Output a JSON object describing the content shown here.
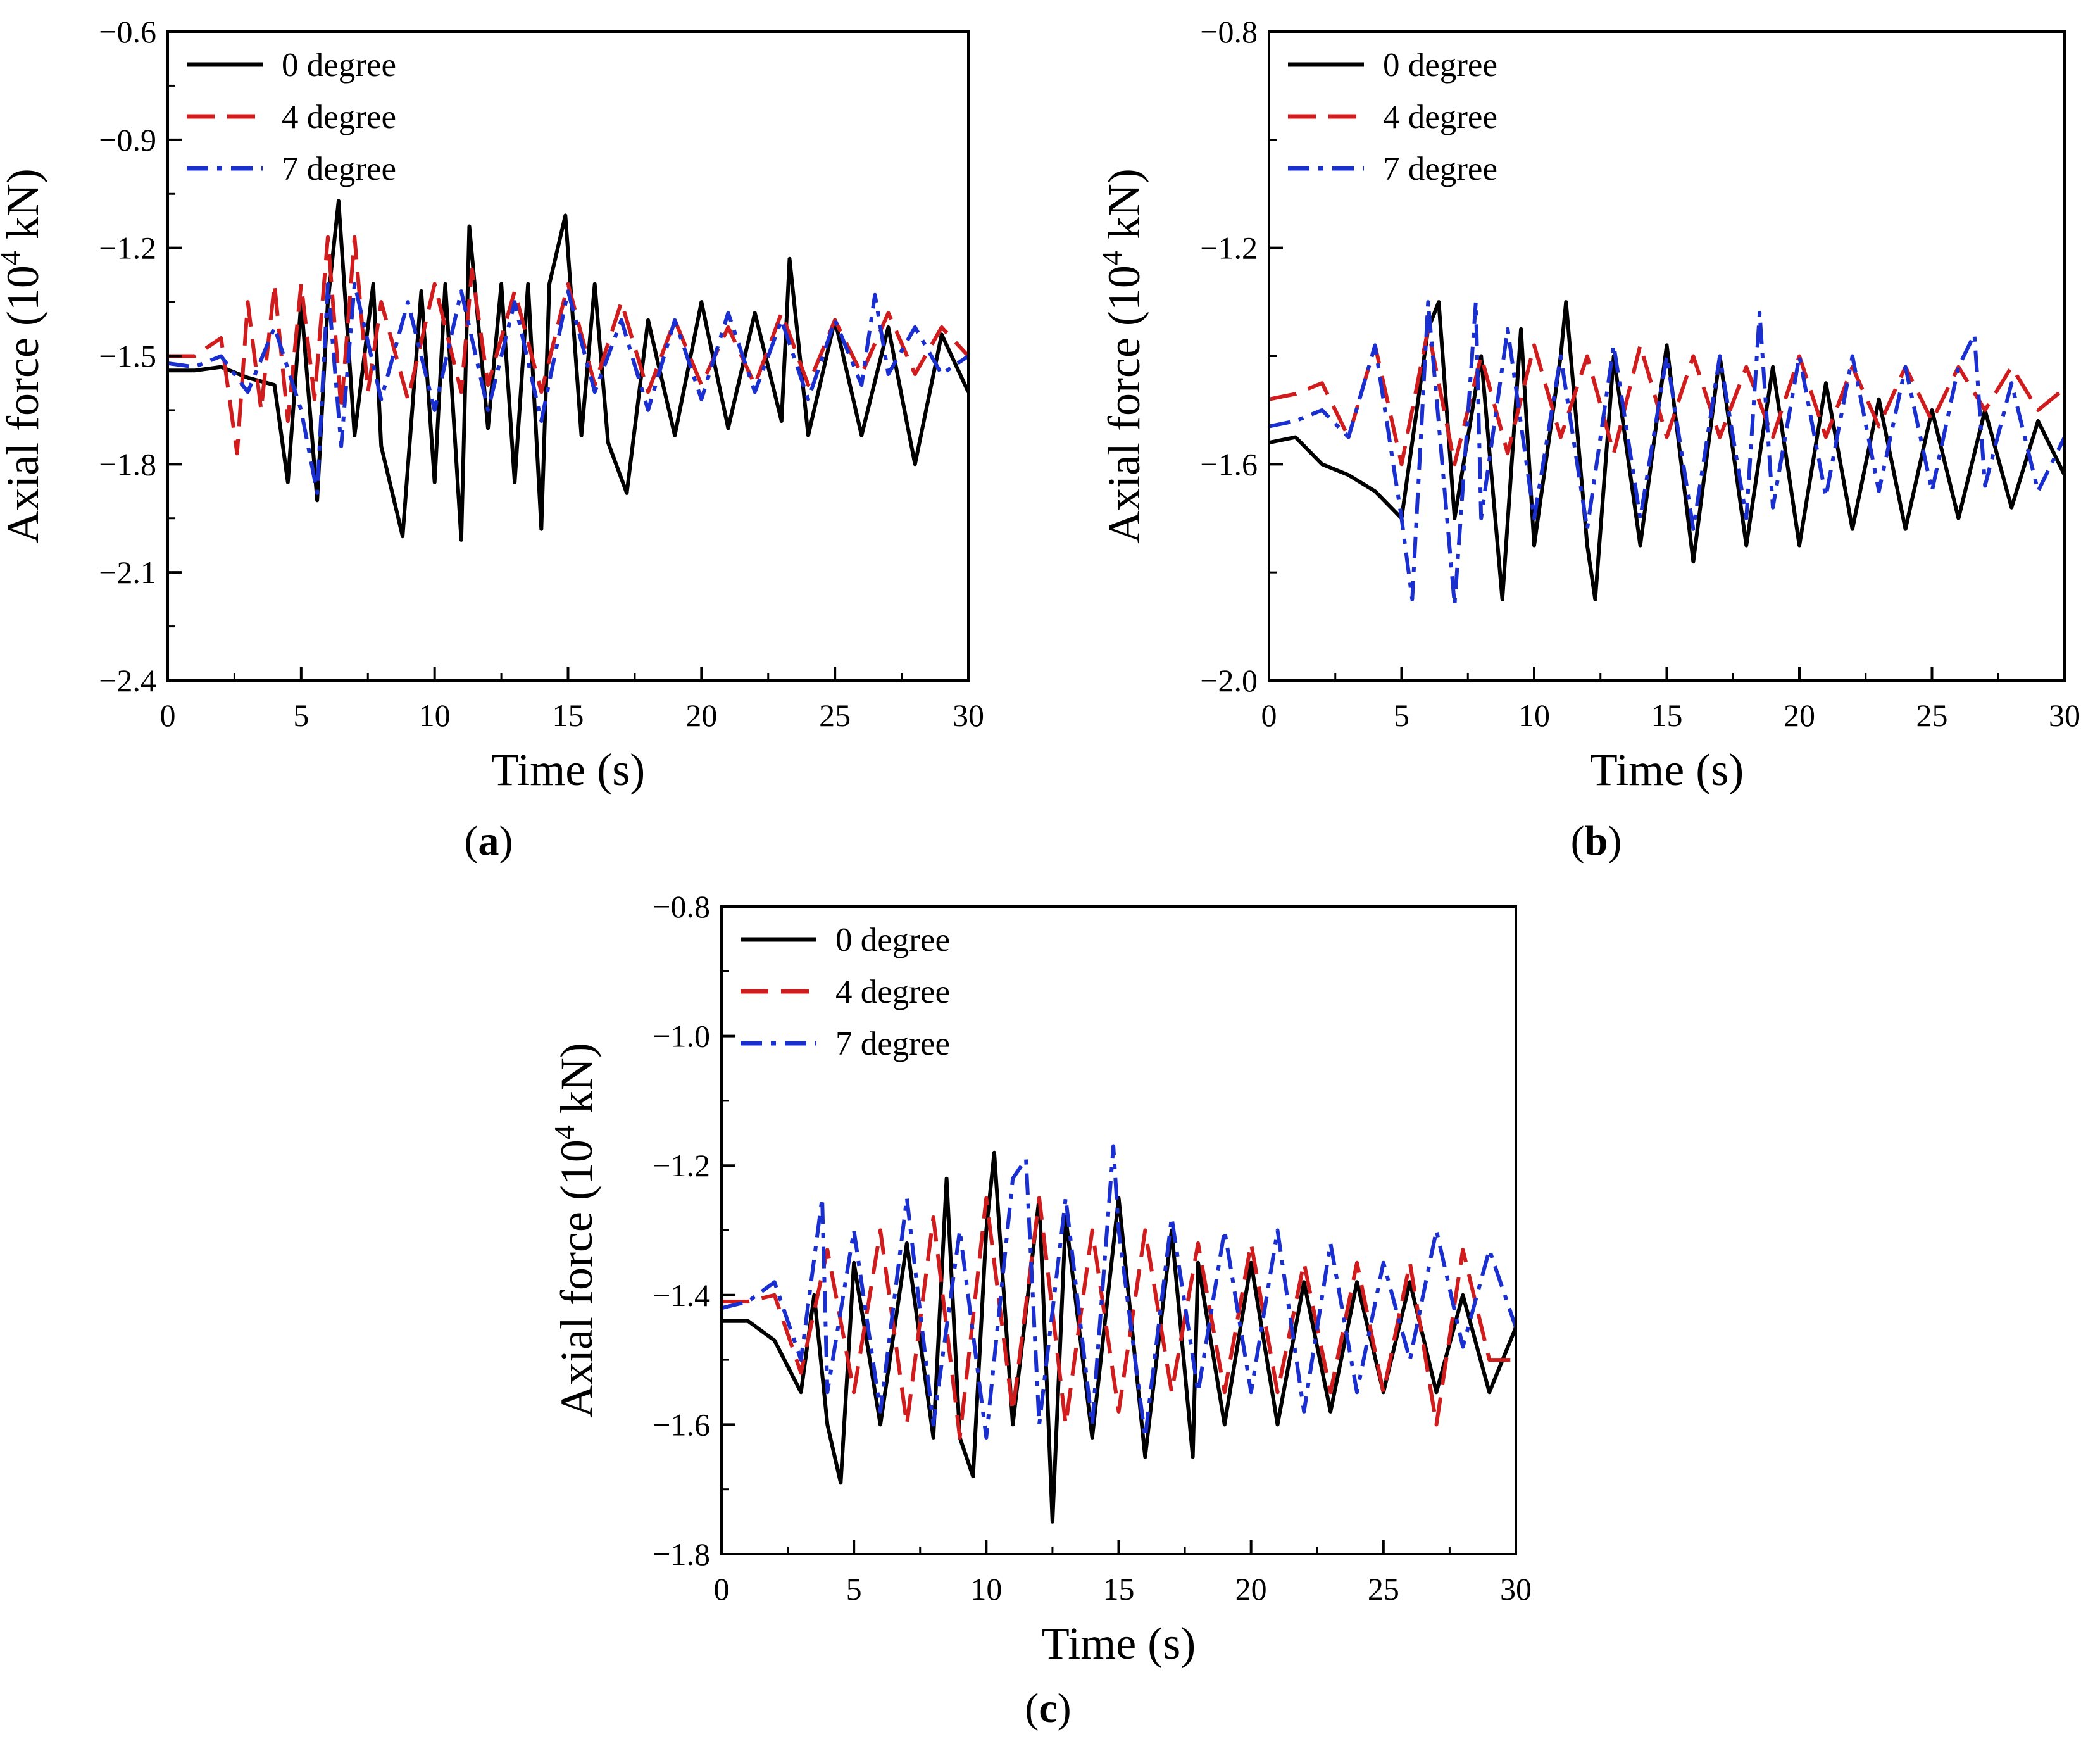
{
  "figure": {
    "series_styles": [
      {
        "name": "0 degree",
        "color": "#000000",
        "dash": "none"
      },
      {
        "name": "4 degree",
        "color": "#d01c1c",
        "dash": "long-dash"
      },
      {
        "name": "7 degree",
        "color": "#1a2fd0",
        "dash": "dash-dot"
      }
    ]
  },
  "chart_data": [
    {
      "type": "line",
      "panel_label": {
        "open": "(",
        "letter": "a",
        "close": ")"
      },
      "xlabel": "Time (s)",
      "ylabel": {
        "prefix": "Axial force (10",
        "sup": "4",
        "suffix": " kN)"
      },
      "xlim": [
        0,
        30
      ],
      "ylim": [
        -2.4,
        -0.6
      ],
      "xticks": [
        0,
        5,
        10,
        15,
        20,
        25,
        30
      ],
      "xtick_labels": [
        "0",
        "5",
        "10",
        "15",
        "20",
        "25",
        "30"
      ],
      "yticks": [
        -2.4,
        -2.1,
        -1.8,
        -1.5,
        -1.2,
        -0.9,
        -0.6
      ],
      "ytick_labels": [
        "−2.4",
        "−2.1",
        "−1.8",
        "−1.5",
        "−1.2",
        "−0.9",
        "−0.6"
      ],
      "legend": [
        "0 degree",
        "4 degree",
        "7 degree"
      ],
      "series": [
        {
          "name": "0 degree",
          "x": [
            0,
            1,
            2,
            3,
            4,
            4.5,
            5,
            5.6,
            6,
            6.4,
            7,
            7.7,
            8,
            8.8,
            9.5,
            10,
            10.4,
            11,
            11.3,
            12,
            12.5,
            13,
            13.5,
            14,
            14.3,
            14.9,
            15.5,
            16,
            16.5,
            17.2,
            18,
            19,
            20,
            21,
            22,
            23,
            23.3,
            24,
            25,
            26,
            27,
            28,
            29,
            30
          ],
          "values": [
            -1.54,
            -1.54,
            -1.53,
            -1.56,
            -1.58,
            -1.85,
            -1.35,
            -1.9,
            -1.35,
            -1.07,
            -1.72,
            -1.3,
            -1.75,
            -2.0,
            -1.32,
            -1.85,
            -1.3,
            -2.01,
            -1.14,
            -1.7,
            -1.3,
            -1.85,
            -1.3,
            -1.98,
            -1.3,
            -1.11,
            -1.72,
            -1.3,
            -1.74,
            -1.88,
            -1.4,
            -1.72,
            -1.35,
            -1.7,
            -1.38,
            -1.68,
            -1.23,
            -1.72,
            -1.4,
            -1.72,
            -1.42,
            -1.8,
            -1.44,
            -1.6
          ]
        },
        {
          "name": "4 degree",
          "x": [
            0,
            1,
            2,
            2.6,
            3,
            3.5,
            4,
            4.5,
            5,
            5.5,
            6,
            6.5,
            7,
            7.5,
            8,
            9,
            10,
            11,
            11.4,
            12,
            13,
            14,
            15,
            16,
            17,
            18,
            19,
            20,
            21,
            22,
            23,
            24,
            25,
            26,
            27,
            28,
            29,
            30
          ],
          "values": [
            -1.5,
            -1.5,
            -1.45,
            -1.77,
            -1.35,
            -1.65,
            -1.3,
            -1.68,
            -1.3,
            -1.62,
            -1.17,
            -1.65,
            -1.17,
            -1.6,
            -1.35,
            -1.62,
            -1.3,
            -1.6,
            -1.26,
            -1.58,
            -1.32,
            -1.6,
            -1.3,
            -1.58,
            -1.35,
            -1.6,
            -1.4,
            -1.58,
            -1.42,
            -1.58,
            -1.38,
            -1.58,
            -1.4,
            -1.55,
            -1.38,
            -1.55,
            -1.42,
            -1.5
          ]
        },
        {
          "name": "7 degree",
          "x": [
            0,
            1,
            2,
            3,
            4,
            5,
            5.6,
            6,
            6.5,
            7,
            8,
            9,
            10,
            11,
            12,
            13,
            14,
            15,
            16,
            17,
            18,
            19,
            20,
            21,
            22,
            23,
            24,
            25,
            26,
            26.5,
            27,
            28,
            29,
            30
          ],
          "values": [
            -1.52,
            -1.53,
            -1.5,
            -1.6,
            -1.42,
            -1.65,
            -1.88,
            -1.3,
            -1.75,
            -1.3,
            -1.62,
            -1.35,
            -1.65,
            -1.32,
            -1.65,
            -1.35,
            -1.68,
            -1.32,
            -1.6,
            -1.4,
            -1.65,
            -1.4,
            -1.62,
            -1.38,
            -1.6,
            -1.4,
            -1.62,
            -1.4,
            -1.58,
            -1.33,
            -1.55,
            -1.42,
            -1.55,
            -1.5
          ]
        }
      ]
    },
    {
      "type": "line",
      "panel_label": {
        "open": "(",
        "letter": "b",
        "close": ")"
      },
      "xlabel": "Time (s)",
      "ylabel": {
        "prefix": "Axial force (10",
        "sup": "4",
        "suffix": " kN)"
      },
      "xlim": [
        0,
        30
      ],
      "ylim": [
        -2.0,
        -0.8
      ],
      "xticks": [
        0,
        5,
        10,
        15,
        20,
        25,
        30
      ],
      "xtick_labels": [
        "0",
        "5",
        "10",
        "15",
        "20",
        "25",
        "30"
      ],
      "yticks": [
        -2.0,
        -1.6,
        -1.2,
        -0.8
      ],
      "ytick_labels": [
        "−2.0",
        "−1.6",
        "−1.2",
        "−0.8"
      ],
      "legend": [
        "0 degree",
        "4 degree",
        "7 degree"
      ],
      "series": [
        {
          "name": "0 degree",
          "x": [
            0,
            1,
            2,
            3,
            4,
            5,
            6,
            6.4,
            7,
            8,
            8.8,
            9.5,
            10,
            11,
            11.2,
            12,
            12.3,
            13,
            14,
            15,
            16,
            17,
            18,
            19,
            20,
            21,
            22,
            23,
            24,
            25,
            26,
            27,
            28,
            29,
            30
          ],
          "values": [
            -1.56,
            -1.55,
            -1.6,
            -1.62,
            -1.65,
            -1.7,
            -1.35,
            -1.3,
            -1.7,
            -1.4,
            -1.85,
            -1.35,
            -1.75,
            -1.4,
            -1.3,
            -1.75,
            -1.85,
            -1.4,
            -1.75,
            -1.38,
            -1.78,
            -1.4,
            -1.75,
            -1.42,
            -1.75,
            -1.45,
            -1.72,
            -1.48,
            -1.72,
            -1.5,
            -1.7,
            -1.5,
            -1.68,
            -1.52,
            -1.62
          ]
        },
        {
          "name": "4 degree",
          "x": [
            0,
            1,
            2,
            3,
            4,
            5,
            6,
            7,
            8,
            9,
            10,
            11,
            12,
            13,
            14,
            15,
            16,
            17,
            18,
            19,
            20,
            21,
            22,
            23,
            24,
            25,
            26,
            27,
            28,
            29,
            30
          ],
          "values": [
            -1.48,
            -1.47,
            -1.45,
            -1.55,
            -1.38,
            -1.6,
            -1.35,
            -1.6,
            -1.4,
            -1.58,
            -1.38,
            -1.55,
            -1.4,
            -1.58,
            -1.38,
            -1.55,
            -1.4,
            -1.55,
            -1.42,
            -1.55,
            -1.4,
            -1.55,
            -1.42,
            -1.53,
            -1.42,
            -1.52,
            -1.42,
            -1.5,
            -1.42,
            -1.5,
            -1.46
          ]
        },
        {
          "name": "7 degree",
          "x": [
            0,
            1,
            2,
            3,
            4,
            5,
            5.4,
            6,
            7,
            7.8,
            8,
            9,
            10,
            11,
            12,
            13,
            14,
            15,
            16,
            17,
            18,
            18.5,
            19,
            20,
            21,
            22,
            23,
            24,
            25,
            26,
            26.6,
            27,
            28,
            29,
            30
          ],
          "values": [
            -1.53,
            -1.52,
            -1.5,
            -1.55,
            -1.38,
            -1.7,
            -1.85,
            -1.3,
            -1.86,
            -1.3,
            -1.7,
            -1.35,
            -1.7,
            -1.4,
            -1.72,
            -1.38,
            -1.7,
            -1.4,
            -1.72,
            -1.4,
            -1.7,
            -1.32,
            -1.68,
            -1.4,
            -1.66,
            -1.4,
            -1.65,
            -1.42,
            -1.65,
            -1.42,
            -1.36,
            -1.64,
            -1.45,
            -1.65,
            -1.55
          ]
        }
      ]
    },
    {
      "type": "line",
      "panel_label": {
        "open": "(",
        "letter": "c",
        "close": ")"
      },
      "xlabel": "Time (s)",
      "ylabel": {
        "prefix": "Axial force (10",
        "sup": "4",
        "suffix": " kN)"
      },
      "xlim": [
        0,
        30
      ],
      "ylim": [
        -1.8,
        -0.8
      ],
      "xticks": [
        0,
        5,
        10,
        15,
        20,
        25,
        30
      ],
      "xtick_labels": [
        "0",
        "5",
        "10",
        "15",
        "20",
        "25",
        "30"
      ],
      "yticks": [
        -1.8,
        -1.6,
        -1.4,
        -1.2,
        -1.0,
        -0.8
      ],
      "ytick_labels": [
        "−1.8",
        "−1.6",
        "−1.4",
        "−1.2",
        "−1.0",
        "−0.8"
      ],
      "legend": [
        "0 degree",
        "4 degree",
        "7 degree"
      ],
      "series": [
        {
          "name": "0 degree",
          "x": [
            0,
            1,
            2,
            3,
            3.5,
            4,
            4.5,
            5,
            6,
            7,
            8,
            8.5,
            9,
            9.5,
            10,
            10.3,
            11,
            12,
            12.5,
            13,
            14,
            15,
            16,
            17,
            17.8,
            18,
            19,
            20,
            21,
            22,
            23,
            24,
            25,
            26,
            27,
            28,
            29,
            30
          ],
          "values": [
            -1.44,
            -1.44,
            -1.47,
            -1.55,
            -1.4,
            -1.6,
            -1.69,
            -1.35,
            -1.6,
            -1.32,
            -1.62,
            -1.22,
            -1.62,
            -1.68,
            -1.3,
            -1.18,
            -1.6,
            -1.25,
            -1.75,
            -1.28,
            -1.62,
            -1.25,
            -1.65,
            -1.3,
            -1.65,
            -1.35,
            -1.6,
            -1.35,
            -1.6,
            -1.38,
            -1.58,
            -1.38,
            -1.55,
            -1.38,
            -1.55,
            -1.4,
            -1.55,
            -1.45
          ]
        },
        {
          "name": "4 degree",
          "x": [
            0,
            1,
            2,
            3,
            4,
            5,
            6,
            7,
            8,
            9,
            10,
            11,
            12,
            13,
            14,
            15,
            16,
            17,
            18,
            19,
            20,
            21,
            22,
            23,
            24,
            25,
            26,
            27,
            28,
            29,
            30
          ],
          "values": [
            -1.41,
            -1.41,
            -1.4,
            -1.52,
            -1.33,
            -1.55,
            -1.3,
            -1.6,
            -1.28,
            -1.62,
            -1.25,
            -1.58,
            -1.25,
            -1.6,
            -1.3,
            -1.58,
            -1.3,
            -1.55,
            -1.32,
            -1.55,
            -1.32,
            -1.55,
            -1.35,
            -1.55,
            -1.35,
            -1.55,
            -1.35,
            -1.6,
            -1.33,
            -1.5,
            -1.5
          ]
        },
        {
          "name": "7 degree",
          "x": [
            0,
            1,
            2,
            3,
            3.8,
            4,
            5,
            6,
            7,
            8,
            9,
            10,
            11,
            11.5,
            12,
            13,
            14,
            14.8,
            15,
            16,
            17,
            18,
            19,
            20,
            21,
            22,
            23,
            24,
            25,
            26,
            27,
            28,
            29,
            30
          ],
          "values": [
            -1.42,
            -1.41,
            -1.38,
            -1.5,
            -1.25,
            -1.55,
            -1.3,
            -1.58,
            -1.25,
            -1.6,
            -1.3,
            -1.62,
            -1.22,
            -1.19,
            -1.6,
            -1.25,
            -1.6,
            -1.17,
            -1.3,
            -1.62,
            -1.28,
            -1.55,
            -1.3,
            -1.55,
            -1.3,
            -1.58,
            -1.32,
            -1.55,
            -1.35,
            -1.5,
            -1.3,
            -1.48,
            -1.33,
            -1.45
          ]
        }
      ]
    }
  ]
}
